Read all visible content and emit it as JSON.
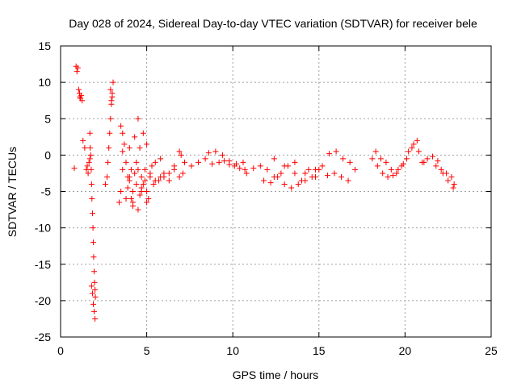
{
  "chart_data": {
    "type": "scatter",
    "title": "Day 028 of 2024, Sidereal Day-to-day VTEC variation (SDTVAR) for receiver bele",
    "xlabel": "GPS time / hours",
    "ylabel": "SDTVAR / TECUs",
    "xlim": [
      0,
      25
    ],
    "ylim": [
      -25,
      15
    ],
    "xticks": [
      "0",
      "5",
      "10",
      "15",
      "20",
      "25"
    ],
    "yticks": [
      "15",
      "10",
      "5",
      "0",
      "-5",
      "-10",
      "-15",
      "-20",
      "-25"
    ],
    "grid": true,
    "marker": "+",
    "series": [
      {
        "name": "SDTVAR",
        "color": "#ff0000",
        "x": [
          0.9,
          0.95,
          1.0,
          1.05,
          1.1,
          1.12,
          1.15,
          1.2,
          1.25,
          0.8,
          1.3,
          1.4,
          1.5,
          1.55,
          1.6,
          1.7,
          1.72,
          1.75,
          1.78,
          1.8,
          1.82,
          1.85,
          1.88,
          1.9,
          1.92,
          1.95,
          1.97,
          2.0,
          2.02,
          1.8,
          1.85,
          1.9,
          1.95,
          2.0,
          1.7,
          1.65,
          2.6,
          2.7,
          2.75,
          2.8,
          2.85,
          2.9,
          2.95,
          3.0,
          3.05,
          2.9,
          2.95,
          3.0,
          3.4,
          3.5,
          3.6,
          3.7,
          3.8,
          3.9,
          4.0,
          4.1,
          4.2,
          4.3,
          4.4,
          4.5,
          4.6,
          4.7,
          4.8,
          4.9,
          5.0,
          3.5,
          3.6,
          3.8,
          4.0,
          4.2,
          4.4,
          4.6,
          4.8,
          5.0,
          5.2,
          3.6,
          3.9,
          4.1,
          4.3,
          4.5,
          4.7,
          4.9,
          5.1,
          5.3,
          4.0,
          4.2,
          4.5,
          4.7,
          5.0,
          5.2,
          5.5,
          5.8,
          5.5,
          5.8,
          6.0,
          6.3,
          6.6,
          6.9,
          7.0,
          7.2,
          5.4,
          5.7,
          6.0,
          6.3,
          6.6,
          6.9,
          7.1,
          7.6,
          8.0,
          8.4,
          8.8,
          9.2,
          9.5,
          9.8,
          10.1,
          10.4,
          10.7,
          8.6,
          9.0,
          9.4,
          9.8,
          10.2,
          10.6,
          10.8,
          11.2,
          11.6,
          12.0,
          12.4,
          12.8,
          13.2,
          13.6,
          14.0,
          14.4,
          14.8,
          15.0,
          11.8,
          12.2,
          12.6,
          13.0,
          13.4,
          13.8,
          14.2,
          14.6,
          12.4,
          13.0,
          13.6,
          14.2,
          14.8,
          15.2,
          15.6,
          16.0,
          16.4,
          16.8,
          15.5,
          15.9,
          16.3,
          16.7,
          17.1,
          18.1,
          18.4,
          18.7,
          19.0,
          19.3,
          19.6,
          19.9,
          20.2,
          20.5,
          20.8,
          21.1,
          18.3,
          18.6,
          18.9,
          19.2,
          19.5,
          19.8,
          20.1,
          20.4,
          20.7,
          21.0,
          21.3,
          21.6,
          21.9,
          22.2,
          22.5,
          22.8,
          21.8,
          22.1,
          22.4,
          22.7,
          22.85
        ],
        "y": [
          12.2,
          11.5,
          12.0,
          9.0,
          8.5,
          8.0,
          7.8,
          8.2,
          7.5,
          -1.8,
          2.0,
          1.0,
          -2.0,
          -1.5,
          -2.5,
          3.0,
          1.0,
          0.0,
          -2.0,
          -4.0,
          -6.0,
          -8.0,
          -10.0,
          -12.0,
          -14.0,
          -16.0,
          -17.5,
          -18.5,
          -19.5,
          -18.0,
          -19.0,
          -20.5,
          -21.5,
          -22.5,
          -0.5,
          -1.0,
          -4.0,
          -3.0,
          -1.0,
          1.0,
          3.0,
          5.0,
          7.0,
          8.5,
          10.0,
          9.0,
          7.5,
          8.0,
          -6.5,
          4.0,
          3.0,
          1.5,
          -1.0,
          -3.0,
          1.0,
          -2.0,
          -5.0,
          2.5,
          -4.0,
          5.0,
          1.0,
          -3.0,
          3.0,
          -2.0,
          1.5,
          -5.0,
          -2.0,
          -6.0,
          -3.5,
          -7.0,
          -1.0,
          -5.5,
          -4.0,
          -6.5,
          -3.0,
          0.5,
          -4.5,
          -6.0,
          -2.5,
          -7.5,
          -5.0,
          -3.5,
          -6.0,
          -1.5,
          -3.0,
          -6.5,
          -2.0,
          -4.5,
          -5.0,
          -2.5,
          -3.5,
          -3.0,
          -1.0,
          -0.5,
          -2.5,
          -3.5,
          -1.5,
          0.5,
          0.0,
          -1.0,
          -4.0,
          -3.5,
          -3.0,
          -2.5,
          -2.0,
          -3.0,
          -2.5,
          -1.5,
          -1.0,
          -0.5,
          -1.2,
          -1.0,
          -0.8,
          -1.3,
          -1.5,
          -1.8,
          -2.0,
          0.3,
          0.5,
          0.0,
          -0.8,
          -1.2,
          -1.0,
          -2.5,
          -1.8,
          -1.5,
          -2.0,
          -3.0,
          -2.5,
          -1.5,
          -2.5,
          -3.5,
          -2.0,
          -3.0,
          -2.0,
          -3.5,
          -3.8,
          -3.0,
          -4.0,
          -4.5,
          -4.0,
          -3.5,
          -3.0,
          -0.5,
          -1.5,
          -1.0,
          -2.5,
          -2.0,
          -1.5,
          0.2,
          0.5,
          -0.5,
          -1.0,
          -2.8,
          -2.5,
          -3.0,
          -3.5,
          -2.0,
          -0.5,
          -1.5,
          -2.5,
          -3.0,
          -2.8,
          -2.0,
          -1.2,
          0.5,
          1.5,
          0.5,
          -1.0,
          0.5,
          -0.5,
          -1.0,
          -2.0,
          -2.5,
          -1.5,
          -0.5,
          1.0,
          2.0,
          -1.0,
          -0.5,
          -0.2,
          -0.8,
          -2.5,
          -3.5,
          -4.5,
          -1.5,
          -2.0,
          -2.5,
          -3.0,
          -4.0
        ]
      }
    ]
  }
}
